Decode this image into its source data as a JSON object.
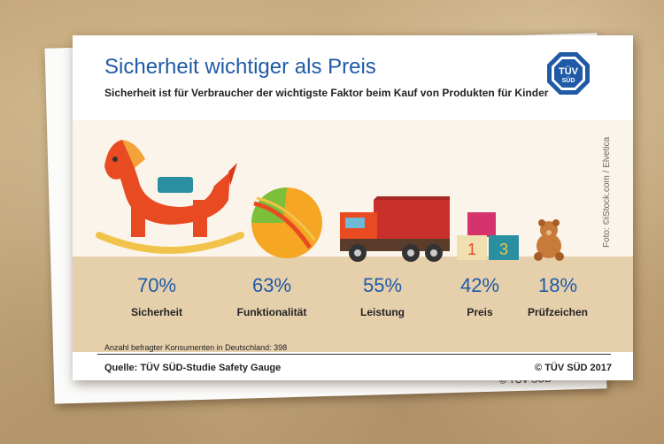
{
  "infographic": {
    "title": "Sicherheit wichtiger als Preis",
    "subtitle": "Sicherheit ist für Verbraucher der wichtigste Faktor beim Kauf von Produkten für Kinder",
    "logo_text": "TÜV",
    "logo_subtext": "SÜD",
    "photo_credit": "Foto: ©iStock.com / Elvetica",
    "sample_note": "Anzahl befragter Konsumenten in Deutschland: 398",
    "source": "Quelle: TÜV SÜD-Studie Safety Gauge",
    "copyright": "© TÜV SÜD 2017",
    "back_copyright": "© TÜV SÜD",
    "accent_color": "#1f5aa6"
  },
  "toy_labels": {
    "block_1": "1",
    "block_3": "3"
  },
  "chart_data": {
    "type": "bar",
    "categories": [
      "Sicherheit",
      "Funktionalität",
      "Leistung",
      "Preis",
      "Prüfzeichen"
    ],
    "values": [
      70,
      63,
      55,
      42,
      18
    ],
    "value_labels": [
      "70%",
      "63%",
      "55%",
      "42%",
      "18%"
    ],
    "unit": "%",
    "icons": [
      "rocking-horse-icon",
      "ball-icon",
      "truck-icon",
      "blocks-icon",
      "teddy-bear-icon"
    ],
    "title": "Sicherheit wichtiger als Preis",
    "legend": "none",
    "grid": false
  }
}
